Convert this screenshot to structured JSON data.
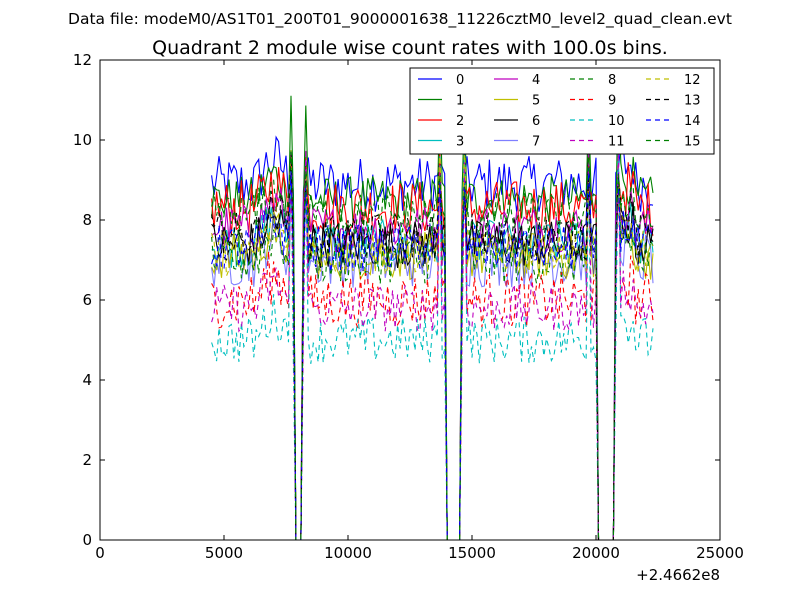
{
  "chart_data": {
    "type": "line",
    "suptitle": "Data file: modeM0/AS1T01_200T01_9000001638_11226cztM0_level2_quad_clean.evt",
    "title": "Quadrant 2 module wise count rates with 100.0s bins.",
    "xlabel": "",
    "ylabel": "",
    "x_offset_label": "+2.4662e8",
    "xlim": [
      0,
      25000
    ],
    "ylim": [
      0,
      12
    ],
    "x_ticks": [
      0,
      5000,
      10000,
      15000,
      20000,
      25000
    ],
    "y_ticks": [
      0,
      2,
      4,
      6,
      8,
      10,
      12
    ],
    "grid": false,
    "legend_position": "top-right",
    "legend_columns": 4,
    "bin_width": 100,
    "x_range": [
      4500,
      22300
    ],
    "gaps": [
      [
        7800,
        8200
      ],
      [
        13900,
        14600
      ],
      [
        20000,
        20800
      ]
    ],
    "spikes": [
      7700,
      8300,
      13700,
      14700,
      19700,
      20900
    ],
    "spike_values": [
      11.7,
      9.9
    ],
    "series": [
      {
        "name": "0",
        "color": "#0000ff",
        "dash": "solid",
        "base": 8.9,
        "noise": 0.35,
        "alpha": 1.0
      },
      {
        "name": "1",
        "color": "#008000",
        "dash": "solid",
        "base": 8.5,
        "noise": 0.3,
        "alpha": 1.0
      },
      {
        "name": "2",
        "color": "#ff0000",
        "dash": "solid",
        "base": 8.3,
        "noise": 0.35,
        "alpha": 1.0
      },
      {
        "name": "3",
        "color": "#00bfbf",
        "dash": "solid",
        "base": 7.4,
        "noise": 0.3,
        "alpha": 1.0
      },
      {
        "name": "4",
        "color": "#bf00bf",
        "dash": "solid",
        "base": 7.8,
        "noise": 0.3,
        "alpha": 1.0
      },
      {
        "name": "5",
        "color": "#bfbf00",
        "dash": "solid",
        "base": 7.1,
        "noise": 0.3,
        "alpha": 1.0
      },
      {
        "name": "6",
        "color": "#000000",
        "dash": "solid",
        "base": 7.4,
        "noise": 0.3,
        "alpha": 1.0
      },
      {
        "name": "7",
        "color": "#0000ff",
        "dash": "solid",
        "base": 7.0,
        "noise": 0.35,
        "alpha": 0.5
      },
      {
        "name": "8",
        "color": "#008000",
        "dash": "dashed",
        "base": 7.0,
        "noise": 0.3,
        "alpha": 1.0
      },
      {
        "name": "9",
        "color": "#ff0000",
        "dash": "dashed",
        "base": 6.0,
        "noise": 0.35,
        "alpha": 1.0
      },
      {
        "name": "10",
        "color": "#00bfbf",
        "dash": "dashed",
        "base": 5.0,
        "noise": 0.3,
        "alpha": 1.0
      },
      {
        "name": "11",
        "color": "#bf00bf",
        "dash": "dashed",
        "base": 5.8,
        "noise": 0.3,
        "alpha": 1.0
      },
      {
        "name": "12",
        "color": "#bfbf00",
        "dash": "dashed",
        "base": 7.2,
        "noise": 0.3,
        "alpha": 1.0
      },
      {
        "name": "13",
        "color": "#000000",
        "dash": "dashed",
        "base": 7.6,
        "noise": 0.3,
        "alpha": 1.0
      },
      {
        "name": "14",
        "color": "#0000ff",
        "dash": "dashed",
        "base": 7.3,
        "noise": 0.3,
        "alpha": 1.0
      },
      {
        "name": "15",
        "color": "#008000",
        "dash": "dashed",
        "base": 8.1,
        "noise": 0.3,
        "alpha": 1.0
      }
    ]
  }
}
